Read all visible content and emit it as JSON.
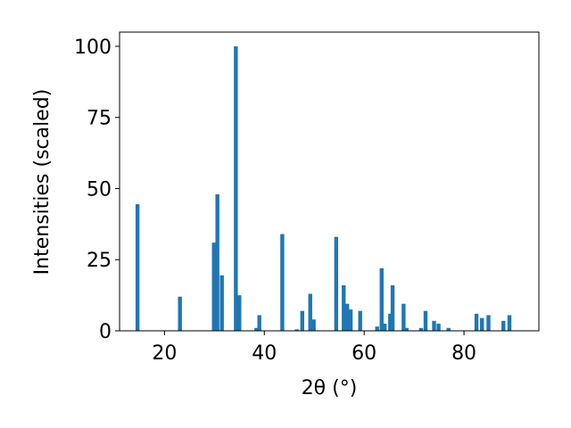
{
  "chart_data": {
    "type": "bar",
    "xlabel": "2θ (°)",
    "ylabel": "Intensities (scaled)",
    "xlim": [
      11,
      95
    ],
    "ylim": [
      0,
      105
    ],
    "xticks": [
      20,
      40,
      60,
      80
    ],
    "yticks": [
      0,
      25,
      50,
      75,
      100
    ],
    "xtick_labels": [
      "20",
      "40",
      "60",
      "80"
    ],
    "ytick_labels": [
      "0",
      "25",
      "50",
      "75",
      "100"
    ],
    "bar_color": "#1f77b4",
    "grid": false,
    "x": [
      14.6,
      23.1,
      29.9,
      30.6,
      31.5,
      34.3,
      35.0,
      38.4,
      39.0,
      43.6,
      46.5,
      47.6,
      49.2,
      49.9,
      54.4,
      55.9,
      56.6,
      57.3,
      59.2,
      62.6,
      63.5,
      64.1,
      65.2,
      65.7,
      67.9,
      68.5,
      71.4,
      72.3,
      74.0,
      74.9,
      76.9,
      82.5,
      83.6,
      84.9,
      87.9,
      89.1
    ],
    "values": [
      44.5,
      12.0,
      31.0,
      48.0,
      19.5,
      100.0,
      12.5,
      1.0,
      5.5,
      34.0,
      0.5,
      7.0,
      13.0,
      4.0,
      33.0,
      16.0,
      9.5,
      7.5,
      7.0,
      1.5,
      22.0,
      2.5,
      6.0,
      16.0,
      9.5,
      1.0,
      1.0,
      7.0,
      3.5,
      2.5,
      1.0,
      6.0,
      4.5,
      5.5,
      3.5,
      5.5
    ]
  }
}
